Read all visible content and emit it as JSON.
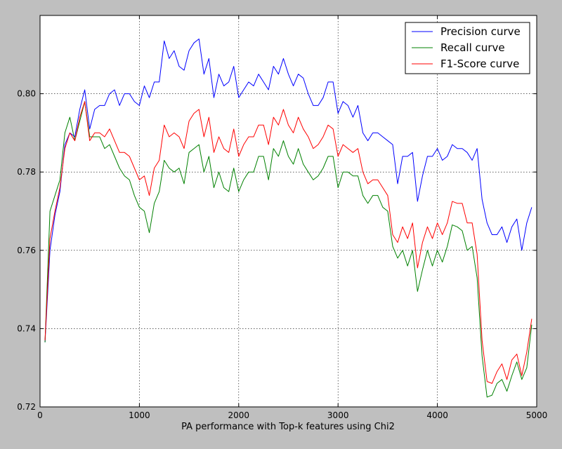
{
  "chart_data": {
    "type": "line",
    "title": "",
    "xlabel": "PA performance with Top-k features using Chi2",
    "ylabel": "",
    "xlim": [
      0,
      5000
    ],
    "ylim": [
      0.72,
      0.82
    ],
    "xticks": [
      0,
      1000,
      2000,
      3000,
      4000,
      5000
    ],
    "xtick_labels": [
      "0",
      "1000",
      "2000",
      "3000",
      "4000",
      "5000"
    ],
    "yticks": [
      0.72,
      0.74,
      0.76,
      0.78,
      0.8
    ],
    "ytick_labels": [
      "0.72",
      "0.74",
      "0.76",
      "0.78",
      "0.80"
    ],
    "grid": true,
    "legend_position": "top-right",
    "x": [
      50,
      100,
      150,
      200,
      250,
      300,
      350,
      400,
      450,
      500,
      550,
      600,
      650,
      700,
      750,
      800,
      850,
      900,
      950,
      1000,
      1050,
      1100,
      1150,
      1200,
      1250,
      1300,
      1350,
      1400,
      1450,
      1500,
      1550,
      1600,
      1650,
      1700,
      1750,
      1800,
      1850,
      1900,
      1950,
      2000,
      2050,
      2100,
      2150,
      2200,
      2250,
      2300,
      2350,
      2400,
      2450,
      2500,
      2550,
      2600,
      2650,
      2700,
      2750,
      2800,
      2850,
      2900,
      2950,
      3000,
      3050,
      3100,
      3150,
      3200,
      3250,
      3300,
      3350,
      3400,
      3450,
      3500,
      3550,
      3600,
      3650,
      3700,
      3750,
      3800,
      3850,
      3900,
      3950,
      4000,
      4050,
      4100,
      4150,
      4200,
      4250,
      4300,
      4350,
      4400,
      4450,
      4500,
      4550,
      4600,
      4650,
      4700,
      4750,
      4800,
      4850,
      4900,
      4950
    ],
    "series": [
      {
        "name": "Precision curve",
        "color": "#0000ff",
        "values": [
          0.7365,
          0.76,
          0.769,
          0.775,
          0.787,
          0.79,
          0.789,
          0.796,
          0.801,
          0.791,
          0.796,
          0.797,
          0.797,
          0.8,
          0.801,
          0.797,
          0.8,
          0.8,
          0.798,
          0.797,
          0.802,
          0.799,
          0.803,
          0.803,
          0.8135,
          0.809,
          0.811,
          0.807,
          0.806,
          0.811,
          0.813,
          0.814,
          0.805,
          0.809,
          0.799,
          0.805,
          0.802,
          0.803,
          0.807,
          0.799,
          0.801,
          0.803,
          0.802,
          0.805,
          0.803,
          0.801,
          0.807,
          0.805,
          0.809,
          0.805,
          0.802,
          0.805,
          0.804,
          0.8,
          0.797,
          0.797,
          0.799,
          0.803,
          0.803,
          0.795,
          0.798,
          0.797,
          0.794,
          0.797,
          0.79,
          0.788,
          0.79,
          0.79,
          0.789,
          0.788,
          0.787,
          0.777,
          0.784,
          0.784,
          0.785,
          0.7725,
          0.779,
          0.784,
          0.784,
          0.786,
          0.783,
          0.784,
          0.787,
          0.786,
          0.786,
          0.785,
          0.783,
          0.786,
          0.773,
          0.767,
          0.764,
          0.764,
          0.766,
          0.762,
          0.766,
          0.768,
          0.76,
          0.767,
          0.771
        ]
      },
      {
        "name": "Recall curve",
        "color": "#008000",
        "values": [
          0.7365,
          0.77,
          0.774,
          0.778,
          0.79,
          0.794,
          0.788,
          0.793,
          0.798,
          0.789,
          0.789,
          0.789,
          0.786,
          0.787,
          0.784,
          0.781,
          0.779,
          0.778,
          0.774,
          0.771,
          0.77,
          0.7645,
          0.772,
          0.775,
          0.783,
          0.781,
          0.78,
          0.781,
          0.777,
          0.785,
          0.786,
          0.787,
          0.78,
          0.784,
          0.776,
          0.78,
          0.776,
          0.775,
          0.781,
          0.775,
          0.778,
          0.78,
          0.78,
          0.784,
          0.784,
          0.778,
          0.786,
          0.784,
          0.788,
          0.784,
          0.782,
          0.786,
          0.782,
          0.78,
          0.778,
          0.779,
          0.781,
          0.784,
          0.784,
          0.776,
          0.78,
          0.78,
          0.779,
          0.779,
          0.774,
          0.772,
          0.774,
          0.774,
          0.771,
          0.77,
          0.761,
          0.758,
          0.76,
          0.756,
          0.76,
          0.7495,
          0.755,
          0.76,
          0.756,
          0.76,
          0.757,
          0.761,
          0.7665,
          0.766,
          0.765,
          0.76,
          0.761,
          0.753,
          0.733,
          0.7225,
          0.723,
          0.726,
          0.727,
          0.724,
          0.728,
          0.7315,
          0.727,
          0.73,
          0.741
        ]
      },
      {
        "name": "F1-Score curve",
        "color": "#ff0000",
        "values": [
          0.737,
          0.763,
          0.77,
          0.776,
          0.786,
          0.79,
          0.788,
          0.794,
          0.798,
          0.788,
          0.79,
          0.79,
          0.789,
          0.791,
          0.788,
          0.785,
          0.785,
          0.784,
          0.781,
          0.778,
          0.779,
          0.774,
          0.781,
          0.783,
          0.792,
          0.789,
          0.79,
          0.789,
          0.786,
          0.793,
          0.795,
          0.796,
          0.789,
          0.794,
          0.785,
          0.789,
          0.786,
          0.785,
          0.791,
          0.784,
          0.787,
          0.789,
          0.789,
          0.792,
          0.792,
          0.787,
          0.794,
          0.792,
          0.796,
          0.792,
          0.79,
          0.794,
          0.791,
          0.789,
          0.786,
          0.787,
          0.789,
          0.792,
          0.791,
          0.784,
          0.787,
          0.786,
          0.785,
          0.786,
          0.78,
          0.777,
          0.778,
          0.778,
          0.776,
          0.774,
          0.764,
          0.762,
          0.766,
          0.763,
          0.767,
          0.7555,
          0.762,
          0.766,
          0.763,
          0.767,
          0.764,
          0.767,
          0.7725,
          0.772,
          0.772,
          0.767,
          0.767,
          0.759,
          0.737,
          0.7265,
          0.726,
          0.729,
          0.731,
          0.727,
          0.732,
          0.7335,
          0.728,
          0.734,
          0.7425
        ]
      }
    ]
  }
}
